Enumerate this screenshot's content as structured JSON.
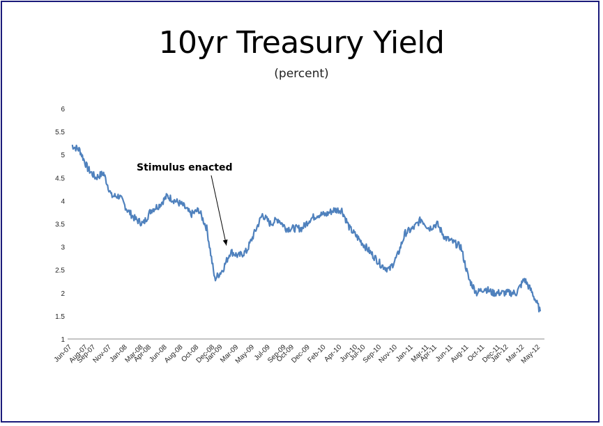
{
  "chart_data": {
    "type": "line",
    "title": "10yr Treasury Yield",
    "subtitle": "(percent)",
    "xlabel": "",
    "ylabel": "",
    "ylim": [
      1,
      6
    ],
    "yticks": [
      "1",
      "1.5",
      "2",
      "2.5",
      "3",
      "3.5",
      "4",
      "4.5",
      "5",
      "5.5",
      "6"
    ],
    "xticks": [
      "Jun-07",
      "Aug-07",
      "Sep-07",
      "Nov-07",
      "Jan-08",
      "Mar-08",
      "Apr-08",
      "Jun-08",
      "Aug-08",
      "Oct-08",
      "Dec-08",
      "Jan-09",
      "Mar-09",
      "May-09",
      "Jul-09",
      "Sep-09",
      "Oct-09",
      "Dec-09",
      "Feb-10",
      "Apr-10",
      "Jun-10",
      "Jul-10",
      "Sep-10",
      "Nov-10",
      "Jan-11",
      "Mar-11",
      "Apr-11",
      "Jun-11",
      "Aug-11",
      "Oct-11",
      "Dec-11",
      "Jan-12",
      "Mar-12",
      "May-12"
    ],
    "grid": false,
    "line_color": "#4f81bd",
    "series": [
      {
        "x": [
          "Jun-07",
          "Jul-07",
          "Aug-07",
          "Sep-07",
          "Oct-07",
          "Nov-07",
          "Dec-07",
          "Jan-08",
          "Feb-08",
          "Mar-08",
          "Apr-08",
          "May-08",
          "Jun-08",
          "Jul-08",
          "Aug-08",
          "Sep-08",
          "Oct-08",
          "Nov-08",
          "Dec-08",
          "Jan-09",
          "Feb-09",
          "Mar-09",
          "Apr-09",
          "May-09",
          "Jun-09",
          "Jul-09",
          "Aug-09",
          "Sep-09",
          "Oct-09",
          "Nov-09",
          "Dec-09",
          "Jan-10",
          "Feb-10",
          "Mar-10",
          "Apr-10",
          "May-10",
          "Jun-10",
          "Jul-10",
          "Aug-10",
          "Sep-10",
          "Oct-10",
          "Nov-10",
          "Dec-10",
          "Jan-11",
          "Feb-11",
          "Mar-11",
          "Apr-11",
          "May-11",
          "Jun-11",
          "Jul-11",
          "Aug-11",
          "Sep-11",
          "Oct-11",
          "Nov-11",
          "Dec-11",
          "Jan-12",
          "Feb-12",
          "Mar-12",
          "Apr-12",
          "May-12"
        ],
        "values": [
          5.2,
          5.1,
          4.7,
          4.5,
          4.6,
          4.1,
          4.1,
          3.8,
          3.6,
          3.5,
          3.8,
          3.9,
          4.1,
          4.0,
          3.9,
          3.7,
          3.8,
          3.4,
          2.3,
          2.5,
          2.9,
          2.8,
          2.9,
          3.3,
          3.7,
          3.5,
          3.6,
          3.4,
          3.4,
          3.4,
          3.6,
          3.7,
          3.7,
          3.8,
          3.8,
          3.4,
          3.2,
          3.0,
          2.8,
          2.6,
          2.5,
          2.8,
          3.3,
          3.4,
          3.6,
          3.4,
          3.5,
          3.2,
          3.1,
          3.0,
          2.3,
          2.0,
          2.1,
          2.0,
          2.0,
          2.0,
          2.0,
          2.3,
          2.0,
          1.6
        ]
      }
    ],
    "annotations": [
      {
        "text": "Stimulus enacted",
        "x": "Feb-09",
        "y": 3.0
      }
    ]
  }
}
